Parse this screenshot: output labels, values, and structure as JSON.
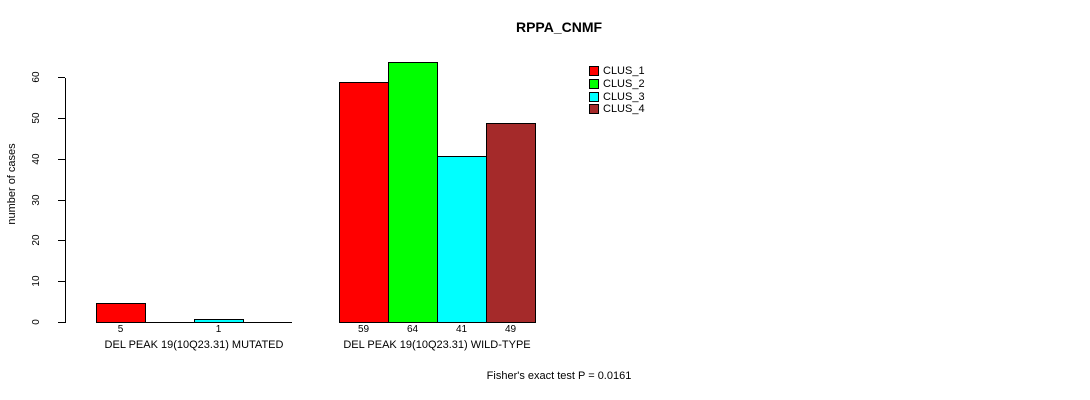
{
  "chart": {
    "title": "RPPA_CNMF",
    "ylabel": "number of cases",
    "footer": "Fisher's exact test P = 0.0161"
  },
  "chart_data": {
    "type": "bar",
    "title": "RPPA_CNMF",
    "xlabel": "",
    "ylabel": "number of cases",
    "categories": [
      "DEL PEAK 19(10Q23.31) MUTATED",
      "DEL PEAK 19(10Q23.31) WILD-TYPE"
    ],
    "series": [
      {
        "name": "CLUS_1",
        "color": "#ff0000",
        "values": [
          5,
          59
        ]
      },
      {
        "name": "CLUS_2",
        "color": "#00ff00",
        "values": [
          0,
          64
        ]
      },
      {
        "name": "CLUS_3",
        "color": "#00ffff",
        "values": [
          1,
          41
        ]
      },
      {
        "name": "CLUS_4",
        "color": "#a52a2a",
        "values": [
          0,
          49
        ]
      }
    ],
    "yticks": [
      0,
      10,
      20,
      30,
      40,
      50,
      60
    ],
    "ylim": [
      0,
      64
    ],
    "grid": false,
    "legend_position": "top-right",
    "bar_value_labels": "values shown under each drawn bar; zero-height bars omitted",
    "annotation": "Fisher's exact test P = 0.0161",
    "colors": {
      "background": "#ffffff",
      "axis": "#000000",
      "text": "#000000"
    }
  }
}
